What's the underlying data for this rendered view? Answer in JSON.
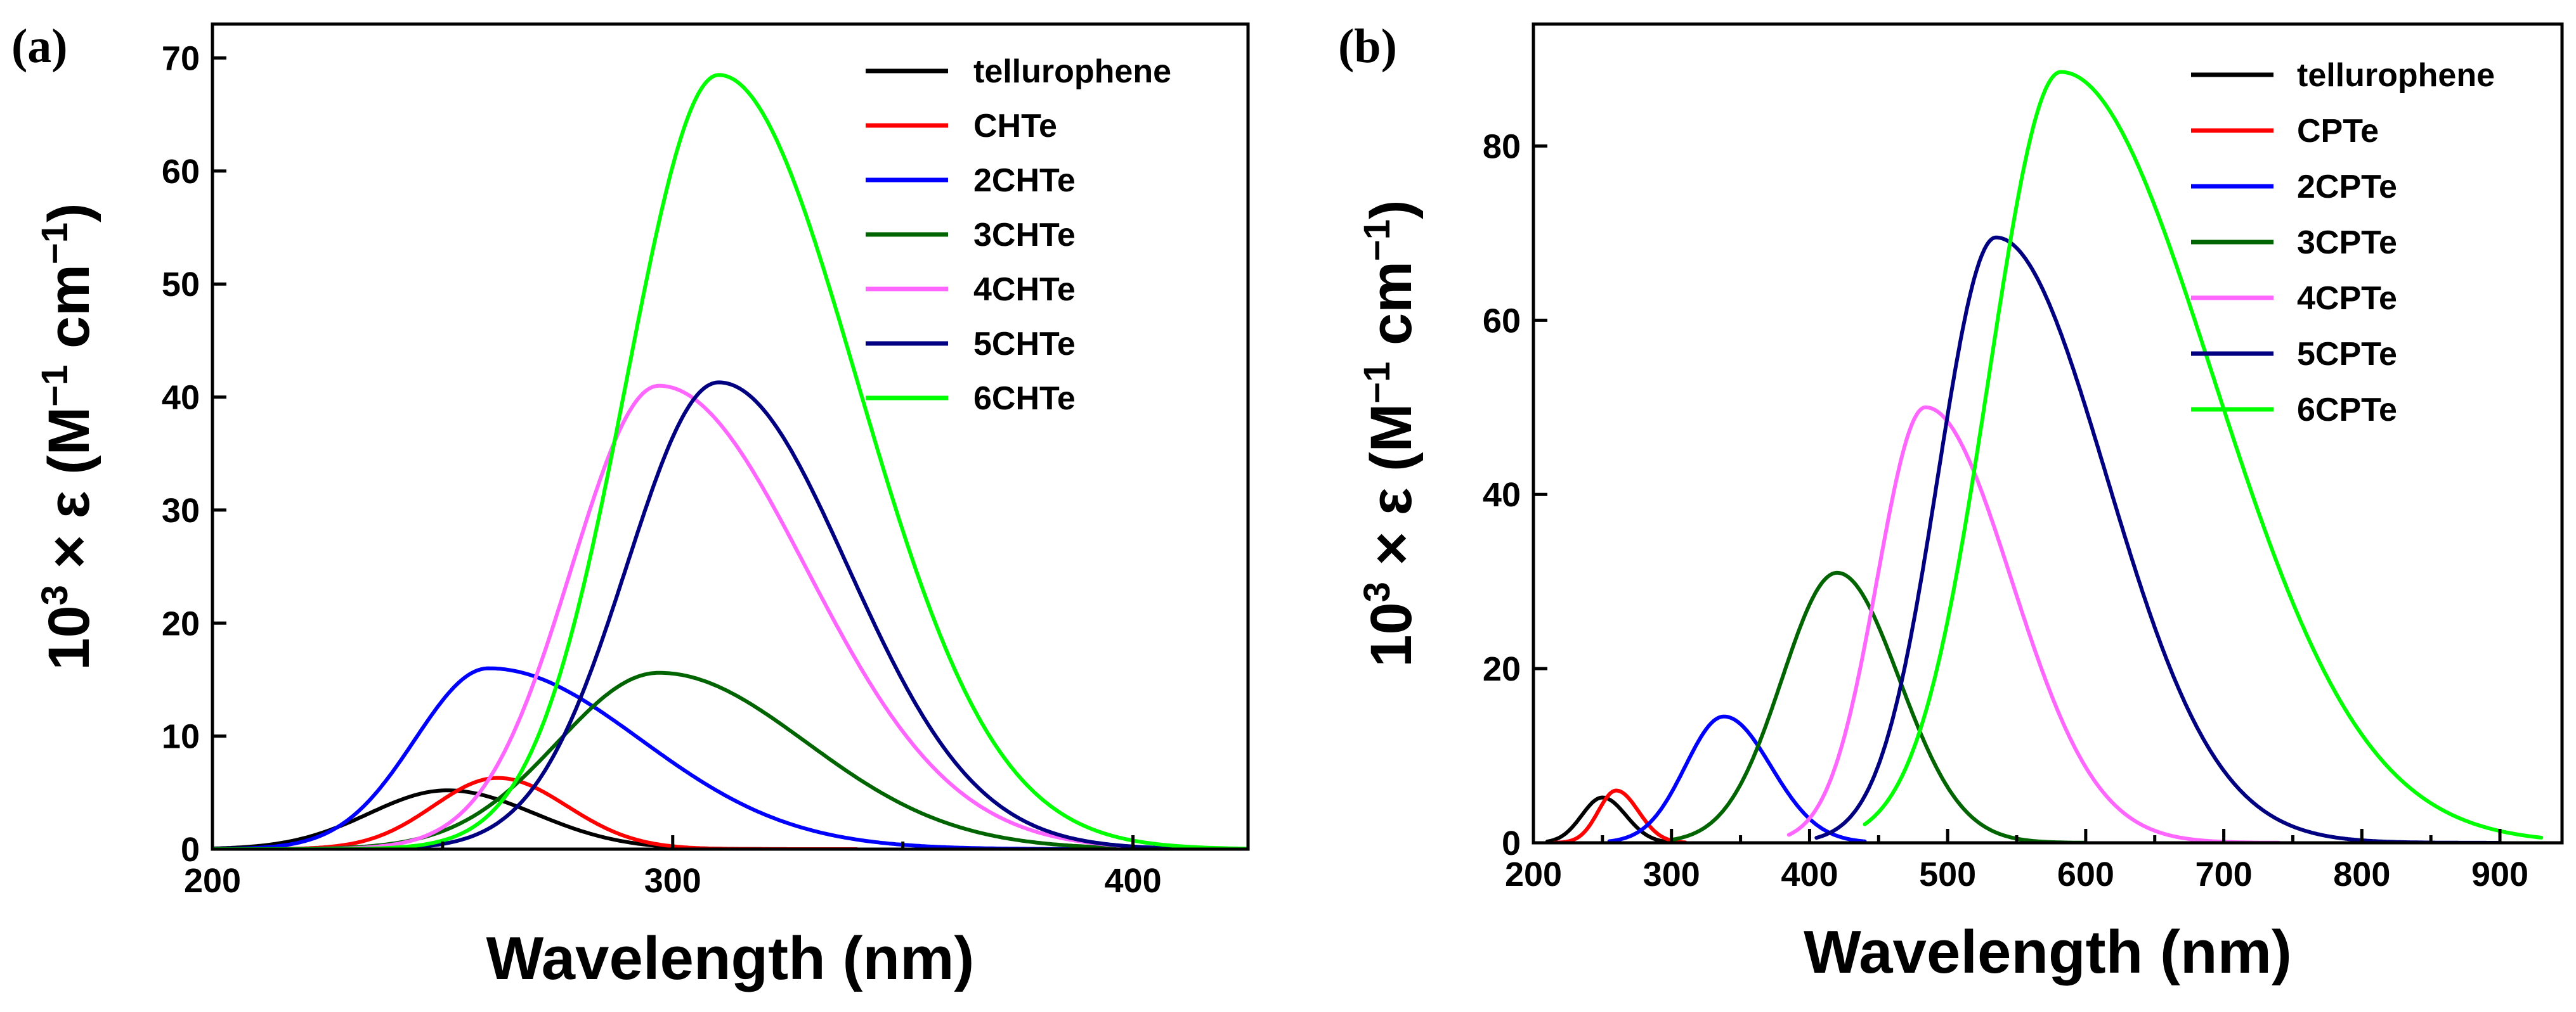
{
  "chart_data": [
    {
      "type": "line",
      "panel_label": "(a)",
      "xlabel": "Wavelength (nm)",
      "ylabel": "10³ × ε (M⁻¹ cm⁻¹)",
      "ylabel_parts": {
        "base": "10",
        "exp": "3",
        "times": " × ε (M",
        "m_exp": "−1",
        "mid": " cm",
        "cm_exp": "−1",
        "end": ")"
      },
      "xlim": [
        200,
        425
      ],
      "ylim": [
        0,
        73
      ],
      "xticks": [
        200,
        300,
        400
      ],
      "xtick_labels": [
        "200",
        "300",
        "400"
      ],
      "yticks": [
        0,
        10,
        20,
        30,
        40,
        50,
        60,
        70
      ],
      "ytick_labels": [
        "0",
        "10",
        "20",
        "30",
        "40",
        "50",
        "60",
        "70"
      ],
      "legend_position": "top-right",
      "series": [
        {
          "name": "tellurophene",
          "color": "#000000",
          "peak_x": 251,
          "peak_y": 5.2,
          "sigma_left": 17,
          "sigma_right": 19,
          "x_range": [
            200,
            330
          ]
        },
        {
          "name": "CHTe",
          "color": "#ff0000",
          "peak_x": 262,
          "peak_y": 6.3,
          "sigma_left": 14,
          "sigma_right": 15,
          "x_range": [
            200,
            340
          ]
        },
        {
          "name": "2CHTe",
          "color": "#0000ff",
          "peak_x": 260,
          "peak_y": 16.0,
          "sigma_left": 16,
          "sigma_right": 33,
          "x_range": [
            200,
            425
          ]
        },
        {
          "name": "3CHTe",
          "color": "#006400",
          "peak_x": 297,
          "peak_y": 15.6,
          "sigma_left": 22,
          "sigma_right": 32,
          "x_range": [
            200,
            425
          ]
        },
        {
          "name": "4CHTe",
          "color": "#ff66ff",
          "peak_x": 297,
          "peak_y": 41.0,
          "sigma_left": 19,
          "sigma_right": 32,
          "x_range": [
            200,
            425
          ]
        },
        {
          "name": "5CHTe",
          "color": "#000080",
          "peak_x": 310,
          "peak_y": 41.3,
          "sigma_left": 20,
          "sigma_right": 28,
          "x_range": [
            200,
            425
          ]
        },
        {
          "name": "6CHTe",
          "color": "#00ff00",
          "peak_x": 310,
          "peak_y": 68.5,
          "sigma_left": 20,
          "sigma_right": 30,
          "x_range": [
            200,
            425
          ]
        }
      ]
    },
    {
      "type": "line",
      "panel_label": "(b)",
      "xlabel": "Wavelength (nm)",
      "ylabel": "10³ × ε (M⁻¹ cm⁻¹)",
      "ylabel_parts": {
        "base": "10",
        "exp": "3",
        "times": " × ε (M",
        "m_exp": "−1",
        "mid": " cm",
        "cm_exp": "−1",
        "end": ")"
      },
      "xlim": [
        200,
        945
      ],
      "ylim": [
        0,
        94
      ],
      "xticks": [
        200,
        300,
        400,
        500,
        600,
        700,
        800,
        900
      ],
      "xtick_labels": [
        "200",
        "300",
        "400",
        "500",
        "600",
        "700",
        "800",
        "900"
      ],
      "yticks": [
        0,
        20,
        40,
        60,
        80
      ],
      "ytick_labels": [
        "0",
        "20",
        "40",
        "60",
        "80"
      ],
      "legend_position": "top-right",
      "series": [
        {
          "name": "tellurophene",
          "color": "#000000",
          "peak_x": 250,
          "peak_y": 5.2,
          "sigma_left": 15,
          "sigma_right": 17,
          "x_range": [
            210,
            300
          ]
        },
        {
          "name": "CPTe",
          "color": "#ff0000",
          "peak_x": 260,
          "peak_y": 6.0,
          "sigma_left": 13,
          "sigma_right": 16,
          "x_range": [
            215,
            310
          ]
        },
        {
          "name": "2CPTe",
          "color": "#0000ff",
          "peak_x": 338,
          "peak_y": 14.5,
          "sigma_left": 28,
          "sigma_right": 34,
          "x_range": [
            255,
            440
          ]
        },
        {
          "name": "3CPTe",
          "color": "#006400",
          "peak_x": 420,
          "peak_y": 31.0,
          "sigma_left": 40,
          "sigma_right": 45,
          "x_range": [
            300,
            600
          ]
        },
        {
          "name": "4CPTe",
          "color": "#ff66ff",
          "peak_x": 484,
          "peak_y": 50.0,
          "sigma_left": 35,
          "sigma_right": 62,
          "x_range": [
            385,
            740
          ]
        },
        {
          "name": "5CPTe",
          "color": "#000080",
          "peak_x": 535,
          "peak_y": 69.5,
          "sigma_left": 42,
          "sigma_right": 80,
          "x_range": [
            405,
            900
          ]
        },
        {
          "name": "6CPTe",
          "color": "#00ff00",
          "peak_x": 582,
          "peak_y": 88.5,
          "sigma_left": 52,
          "sigma_right": 110,
          "x_range": [
            440,
            930
          ]
        }
      ]
    }
  ]
}
